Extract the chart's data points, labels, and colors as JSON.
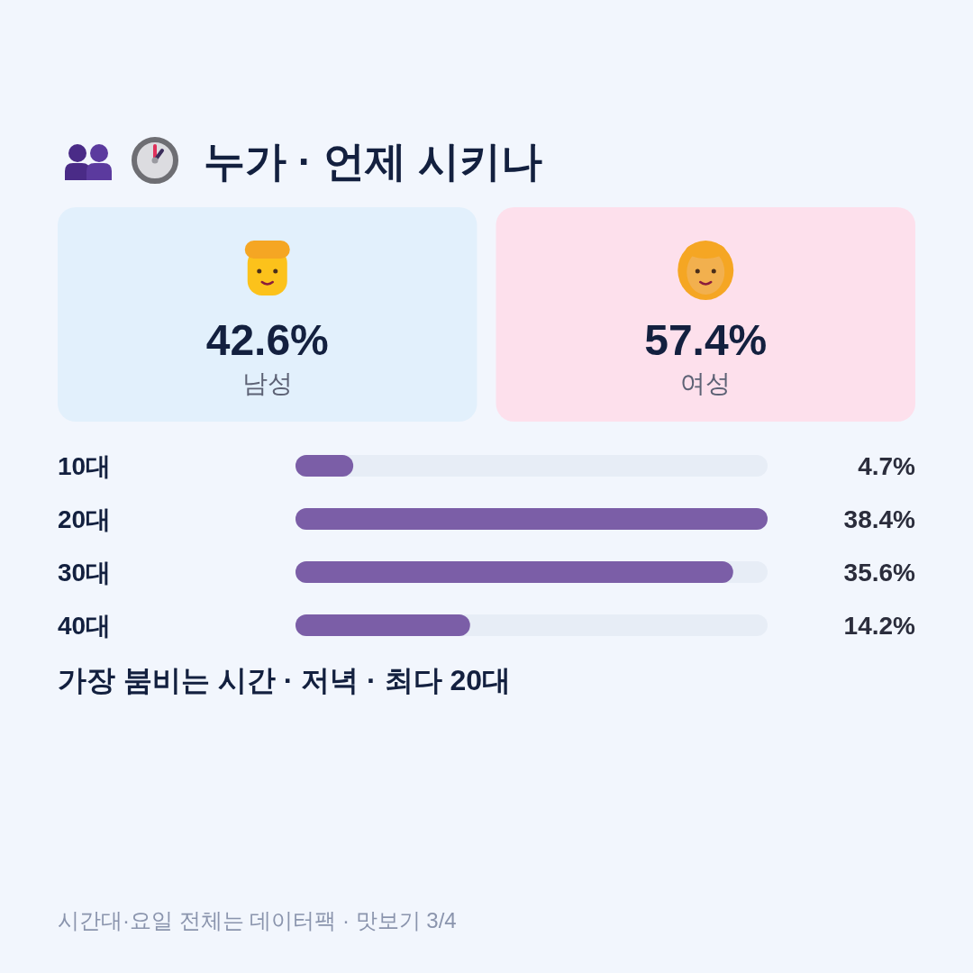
{
  "chart_data": [
    {
      "type": "other",
      "title": "누가 · 언제 시키나",
      "categories": [
        "남성",
        "여성"
      ],
      "value_labels": [
        "42.6%",
        "57.4%"
      ],
      "colors": [
        "#e2f0fc",
        "#fde0ec"
      ]
    },
    {
      "type": "bar",
      "orientation": "horizontal",
      "categories": [
        "10대",
        "20대",
        "30대",
        "40대"
      ],
      "values": [
        4.7,
        38.4,
        35.6,
        14.2
      ],
      "value_labels": [
        "4.7%",
        "38.4%",
        "35.6%",
        "14.2%"
      ],
      "color": "#7b5ea7",
      "annotations": [
        "가장 붐비는 시간 · 저녁 · 최다 20대",
        "시간대·요일 전체는 데이터팩 · 맛보기 3/4"
      ]
    }
  ]
}
